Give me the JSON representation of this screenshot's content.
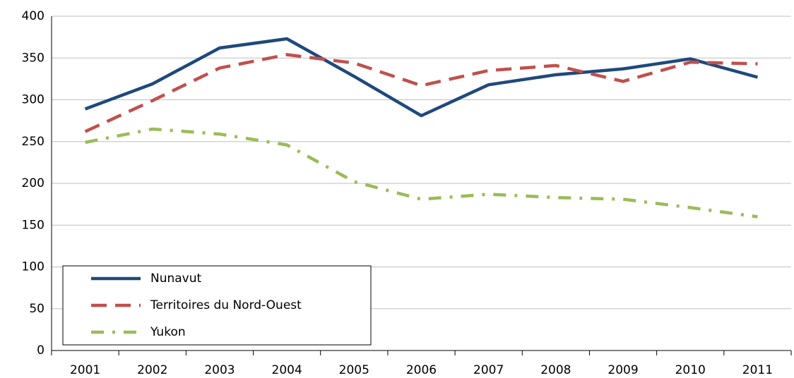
{
  "chart_data": {
    "type": "line",
    "categories": [
      "2001",
      "2002",
      "2003",
      "2004",
      "2005",
      "2006",
      "2007",
      "2008",
      "2009",
      "2010",
      "2011"
    ],
    "series": [
      {
        "name": "Nunavut",
        "color": "#1f497d",
        "dash": "solid",
        "values": [
          289,
          319,
          362,
          373,
          328,
          281,
          318,
          330,
          337,
          349,
          327
        ]
      },
      {
        "name": "Territoires du Nord-Ouest",
        "color": "#c0504d",
        "dash": "dashed",
        "values": [
          262,
          299,
          338,
          354,
          344,
          317,
          335,
          341,
          322,
          345,
          343
        ]
      },
      {
        "name": "Yukon",
        "color": "#9bbb59",
        "dash": "dashdot",
        "values": [
          249,
          265,
          259,
          246,
          202,
          181,
          187,
          183,
          181,
          171,
          160
        ]
      }
    ],
    "ylim": [
      0,
      400
    ],
    "yticks": [
      0,
      50,
      100,
      150,
      200,
      250,
      300,
      350,
      400
    ],
    "grid": true,
    "legend": "lower left"
  }
}
